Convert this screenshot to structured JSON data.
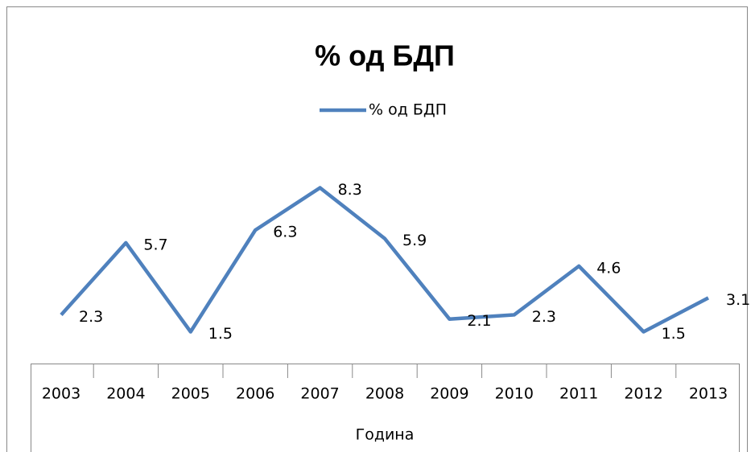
{
  "chart_data": {
    "type": "line",
    "title": "% од БДП",
    "x_label": "Година",
    "categories": [
      "2003",
      "2004",
      "2005",
      "2006",
      "2007",
      "2008",
      "2009",
      "2010",
      "2011",
      "2012",
      "2013"
    ],
    "series": [
      {
        "name": "% од БДП",
        "color": "#4f81bd",
        "values": [
          2.3,
          5.7,
          1.5,
          6.3,
          8.3,
          5.9,
          2.1,
          2.3,
          4.6,
          1.5,
          3.1
        ]
      }
    ],
    "legend": "top"
  }
}
